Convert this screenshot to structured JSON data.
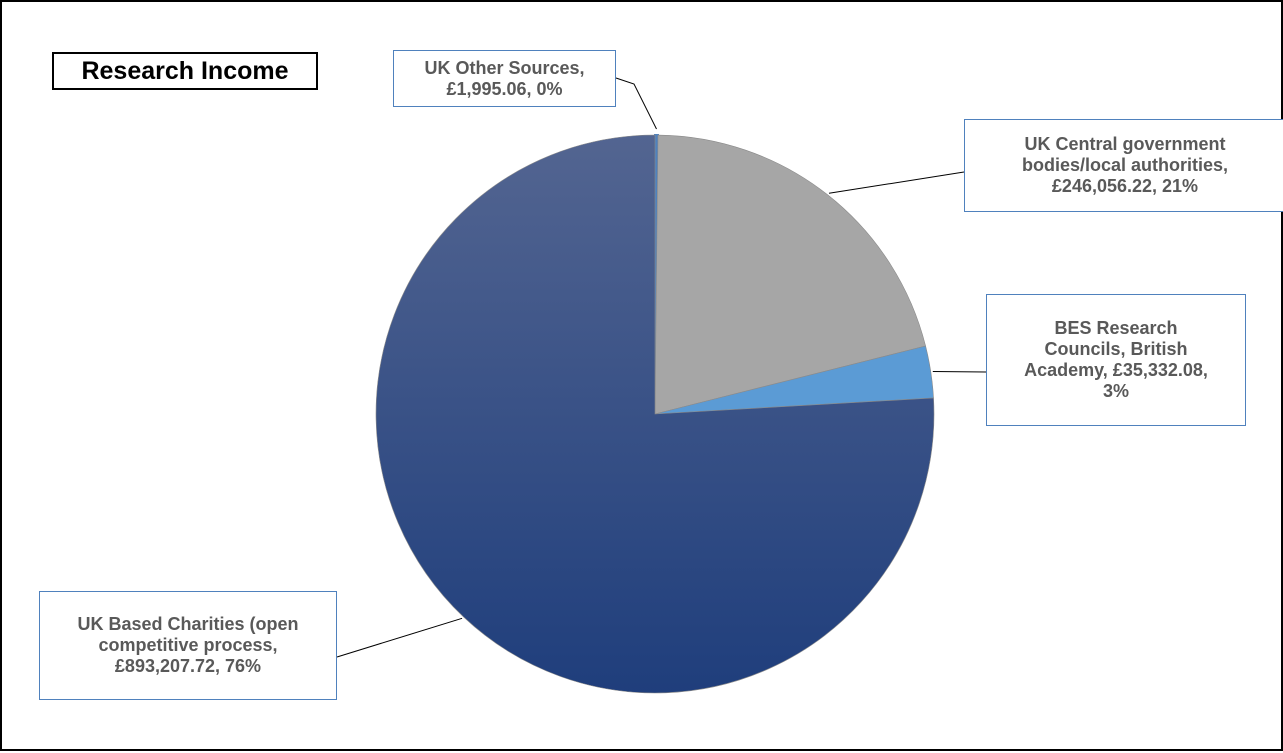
{
  "chart_data": {
    "type": "pie",
    "title": "Research Income",
    "slices": [
      {
        "name": "UK Other Sources",
        "value": 1995.06,
        "value_label": "£1,995.06",
        "percent_label": "0%",
        "color": "#4f81bd",
        "label_lines": [
          "UK Other Sources,",
          "£1,995.06,  0%"
        ]
      },
      {
        "name": "UK Central government bodies/local authorities",
        "value": 246056.22,
        "value_label": "£246,056.22",
        "percent_label": "21%",
        "color": "#a6a6a6",
        "label_lines": [
          "UK Central government",
          "bodies/local authorities,",
          "£246,056.22,  21%"
        ]
      },
      {
        "name": "BES Research Councils, British Academy",
        "value": 35332.08,
        "value_label": "£35,332.08",
        "percent_label": "3%",
        "color": "#5b9bd5",
        "label_lines": [
          "BES Research",
          "Councils, British",
          "Academy,  £35,332.08,",
          "3%"
        ]
      },
      {
        "name": "UK Based Charities (open competitive process",
        "value": 893207.72,
        "value_label": "£893,207.72",
        "percent_label": "76%",
        "color": "#3d5a93",
        "label_lines": [
          "UK Based Charities (open",
          "competitive process,",
          "£893,207.72,  76%"
        ]
      }
    ],
    "start_angle": "12 o'clock",
    "direction": "clockwise",
    "legend": "none"
  }
}
